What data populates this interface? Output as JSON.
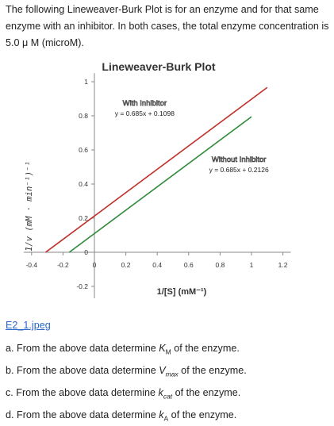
{
  "intro": "The following Lineweaver-Burk Plot is for an enzyme and for that same enzyme with an inhibitor. In both cases, the total enzyme concentration is 5.0 μ M (microM).",
  "image_link": "E2_1.jpeg",
  "questions": {
    "a": {
      "prefix": "a. From the above data determine ",
      "sym": "K",
      "sub": "M",
      "suffix": " of the enzyme."
    },
    "b": {
      "prefix": "b. From the above data determine ",
      "sym": "V",
      "sub": "max",
      "suffix": " of the enzyme."
    },
    "c": {
      "prefix": "c. From the above data determine ",
      "sym": "k",
      "sub": "cat",
      "suffix": " of the enzyme."
    },
    "d": {
      "prefix": "d. From the above data determine ",
      "sym": "k",
      "sub": "A",
      "suffix": " of the enzyme."
    }
  },
  "chart_data": {
    "type": "line",
    "title": "Lineweaver-Burk Plot",
    "xlabel": "1/[S] (mM⁻¹)",
    "ylabel": "1/v (mM · min⁻¹)⁻¹",
    "xlim": [
      -0.45,
      1.25
    ],
    "ylim": [
      -0.27,
      1.05
    ],
    "x_ticks": [
      -0.4,
      -0.2,
      0,
      0.2,
      0.4,
      0.6,
      0.8,
      1,
      1.2
    ],
    "x_tick_labels": [
      "-0.4",
      "-0.2",
      "0",
      "0.2",
      "0.4",
      "0.6",
      "0.8",
      "1",
      "1.2"
    ],
    "y_ticks": [
      -0.2,
      0,
      0.2,
      0.4,
      0.6,
      0.8,
      1
    ],
    "y_tick_labels": [
      "-0.2",
      "0",
      "0.2",
      "0.4",
      "0.6",
      "0.8",
      "1"
    ],
    "grid": false,
    "series": [
      {
        "name": "With Inhibitor",
        "equation": "y = 0.685x + 0.1098",
        "slope": 0.685,
        "intercept": 0.1098,
        "x": [
          -0.16,
          1.0
        ],
        "color": "#2e8b3a"
      },
      {
        "name": "Without Inhibitor",
        "equation": "y = 0.685x + 0.2126",
        "slope": 0.685,
        "intercept": 0.2126,
        "x": [
          -0.31,
          1.1
        ],
        "color": "#c0302a"
      }
    ],
    "annotations": [
      {
        "series": 0,
        "name_label": "With Inhibitor",
        "eq_label": "y = 0.685x + 0.1098",
        "anchor": [
          0.32,
          0.86
        ]
      },
      {
        "series": 1,
        "name_label": "Without Inhibitor",
        "eq_label": "y = 0.685x + 0.2126",
        "anchor": [
          0.92,
          0.53
        ]
      }
    ]
  }
}
